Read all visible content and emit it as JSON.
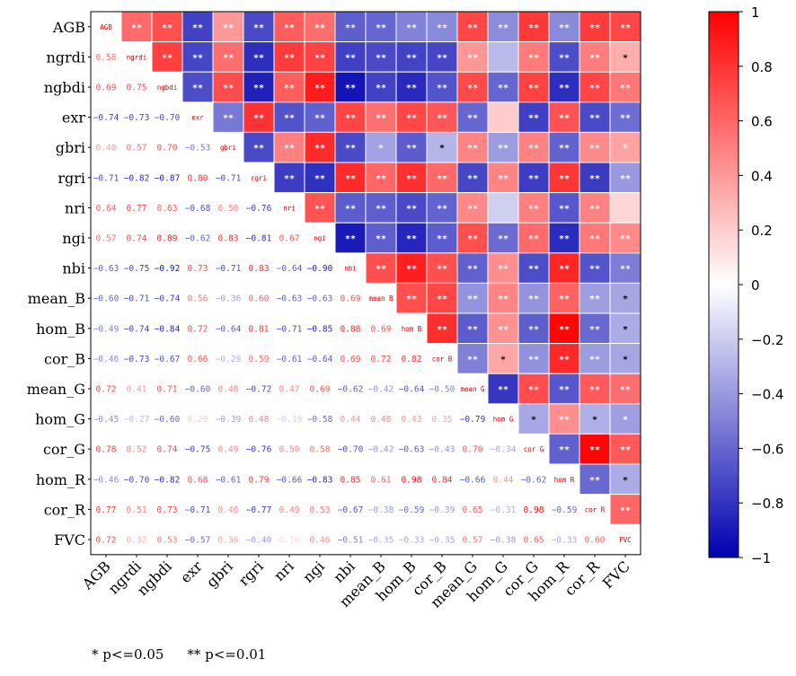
{
  "chart_data": {
    "type": "heatmap",
    "variables": [
      "AGB",
      "ngrdi",
      "ngbdi",
      "exr",
      "gbri",
      "rgri",
      "nri",
      "ngi",
      "nbi",
      "mean_B",
      "hom_B",
      "cor_B",
      "mean_G",
      "hom_G",
      "cor_G",
      "hom_R",
      "cor_R",
      "FVC"
    ],
    "diagonal_labels": [
      "AGB",
      "ngrdi",
      "ngbdi",
      "exr",
      "gbri",
      "rgri",
      "nri",
      "ngi",
      "nbi",
      "mean B",
      "hom B",
      "cor B",
      "mean G",
      "hom G",
      "cor G",
      "hom R",
      "cor R",
      "FVC"
    ],
    "lower_values": [
      [],
      [
        0.58
      ],
      [
        0.69,
        0.75
      ],
      [
        -0.74,
        -0.73,
        -0.7
      ],
      [
        0.4,
        0.57,
        0.7,
        -0.53
      ],
      [
        -0.71,
        -0.82,
        -0.87,
        0.8,
        -0.71
      ],
      [
        0.64,
        0.77,
        0.63,
        -0.68,
        0.5,
        -0.76
      ],
      [
        0.57,
        0.74,
        0.89,
        -0.62,
        0.83,
        -0.81,
        0.67
      ],
      [
        -0.63,
        -0.75,
        -0.92,
        0.73,
        -0.71,
        0.83,
        -0.64,
        -0.9
      ],
      [
        -0.6,
        -0.71,
        -0.74,
        0.56,
        -0.36,
        0.6,
        -0.63,
        -0.63,
        0.69
      ],
      [
        -0.49,
        -0.74,
        -0.84,
        0.72,
        -0.64,
        0.81,
        -0.71,
        -0.85,
        0.88,
        0.69
      ],
      [
        -0.46,
        -0.73,
        -0.67,
        0.66,
        -0.29,
        0.59,
        -0.61,
        -0.64,
        0.69,
        0.72,
        0.82
      ],
      [
        0.72,
        0.41,
        0.71,
        -0.6,
        0.48,
        -0.72,
        0.47,
        0.69,
        -0.62,
        -0.42,
        -0.64,
        -0.5
      ],
      [
        -0.45,
        -0.27,
        -0.6,
        0.2,
        -0.39,
        0.48,
        -0.19,
        -0.58,
        0.44,
        0.48,
        0.43,
        0.35,
        -0.79
      ],
      [
        0.78,
        0.52,
        0.74,
        -0.75,
        0.49,
        -0.76,
        0.5,
        0.58,
        -0.7,
        -0.42,
        -0.63,
        -0.43,
        0.7,
        -0.34
      ],
      [
        -0.46,
        -0.7,
        -0.82,
        0.68,
        -0.61,
        0.79,
        -0.66,
        -0.83,
        0.85,
        0.61,
        0.98,
        0.84,
        -0.66,
        0.44,
        -0.62
      ],
      [
        0.77,
        0.51,
        0.73,
        -0.71,
        0.46,
        -0.77,
        0.49,
        0.53,
        -0.67,
        -0.38,
        -0.59,
        -0.39,
        0.65,
        -0.31,
        0.98,
        -0.59
      ],
      [
        0.72,
        0.32,
        0.53,
        -0.57,
        0.36,
        -0.4,
        0.16,
        0.46,
        -0.51,
        -0.35,
        -0.33,
        -0.35,
        0.57,
        -0.38,
        0.65,
        -0.33,
        0.6
      ]
    ],
    "upper_significance": [
      [
        "",
        "**",
        "**",
        "**",
        "**",
        "**",
        "**",
        "**",
        "**",
        "**",
        "**",
        "**",
        "**",
        "**",
        "**",
        "**",
        "**",
        "**"
      ],
      [
        "",
        "",
        "**",
        "**",
        "**",
        "**",
        "**",
        "**",
        "**",
        "**",
        "**",
        "**",
        "**",
        "",
        "**",
        "**",
        "**",
        "*"
      ],
      [
        "",
        "",
        "",
        "**",
        "**",
        "**",
        "**",
        "**",
        "**",
        "**",
        "**",
        "**",
        "**",
        "**",
        "**",
        "**",
        "**",
        "**"
      ],
      [
        "",
        "",
        "",
        "",
        "**",
        "**",
        "**",
        "**",
        "**",
        "**",
        "**",
        "**",
        "**",
        "",
        "**",
        "**",
        "**",
        "**"
      ],
      [
        "",
        "",
        "",
        "",
        "",
        "**",
        "**",
        "**",
        "**",
        "*",
        "**",
        "*",
        "**",
        "**",
        "**",
        "**",
        "**",
        "*"
      ],
      [
        "",
        "",
        "",
        "",
        "",
        "",
        "**",
        "**",
        "**",
        "**",
        "**",
        "**",
        "**",
        "**",
        "**",
        "**",
        "**",
        "**"
      ],
      [
        "",
        "",
        "",
        "",
        "",
        "",
        "",
        "**",
        "**",
        "**",
        "**",
        "**",
        "**",
        "",
        "**",
        "**",
        "**",
        ""
      ],
      [
        "",
        "",
        "",
        "",
        "",
        "",
        "",
        "",
        "**",
        "**",
        "**",
        "**",
        "**",
        "**",
        "**",
        "**",
        "**",
        "**"
      ],
      [
        "",
        "",
        "",
        "",
        "",
        "",
        "",
        "",
        "",
        "**",
        "**",
        "**",
        "**",
        "**",
        "**",
        "**",
        "**",
        "**"
      ],
      [
        "",
        "",
        "",
        "",
        "",
        "",
        "",
        "",
        "",
        "",
        "**",
        "**",
        "**",
        "**",
        "**",
        "**",
        "**",
        "*"
      ],
      [
        "",
        "",
        "",
        "",
        "",
        "",
        "",
        "",
        "",
        "",
        "",
        "**",
        "**",
        "**",
        "**",
        "**",
        "**",
        "*"
      ],
      [
        "",
        "",
        "",
        "",
        "",
        "",
        "",
        "",
        "",
        "",
        "",
        "",
        "**",
        "*",
        "**",
        "**",
        "**",
        "*"
      ],
      [
        "",
        "",
        "",
        "",
        "",
        "",
        "",
        "",
        "",
        "",
        "",
        "",
        "",
        "**",
        "**",
        "**",
        "**",
        "**"
      ],
      [
        "",
        "",
        "",
        "",
        "",
        "",
        "",
        "",
        "",
        "",
        "",
        "",
        "",
        "",
        "*",
        "**",
        "*",
        "*"
      ],
      [
        "",
        "",
        "",
        "",
        "",
        "",
        "",
        "",
        "",
        "",
        "",
        "",
        "",
        "",
        "",
        "**",
        "**",
        "**"
      ],
      [
        "",
        "",
        "",
        "",
        "",
        "",
        "",
        "",
        "",
        "",
        "",
        "",
        "",
        "",
        "",
        "",
        "**",
        "*"
      ],
      [
        "",
        "",
        "",
        "",
        "",
        "",
        "",
        "",
        "",
        "",
        "",
        "",
        "",
        "",
        "",
        "",
        "",
        "**"
      ],
      [
        "",
        "",
        "",
        "",
        "",
        "",
        "",
        "",
        "",
        "",
        "",
        "",
        "",
        "",
        "",
        "",
        "",
        ""
      ]
    ],
    "colorbar": {
      "range": [
        -1,
        1
      ],
      "ticks": [
        1,
        0.8,
        0.6,
        0.4,
        0.2,
        0,
        -0.2,
        -0.4,
        -0.6,
        -0.8,
        -1
      ],
      "tick_labels": [
        "1",
        "0.8",
        "0.6",
        "0.4",
        "0.2",
        "0",
        "−0.2",
        "−0.4",
        "−0.6",
        "−0.8",
        "−1"
      ],
      "colors": {
        "negative": "#0000b0",
        "zero": "#ffffff",
        "positive": "#ff0000"
      }
    },
    "grid": true
  },
  "caption": {
    "sig_05": "* p<=0.05",
    "sig_01": "** p<=0.01"
  }
}
